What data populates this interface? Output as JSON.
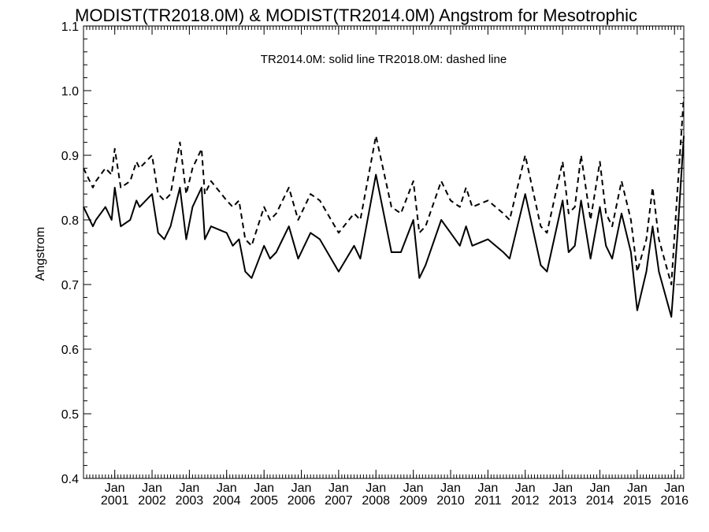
{
  "chart_data": {
    "type": "line",
    "title": "MODIST(TR2018.0M) & MODIST(TR2014.0M)  Angstrom for Mesotrophic",
    "annotation": "TR2014.0M: solid line   TR2018.0M: dashed line",
    "xlabel": "",
    "ylabel": "Angstrom",
    "xlim": [
      "2000-03-01",
      "2016-04-01"
    ],
    "ylim": [
      0.4,
      1.1
    ],
    "grid": false,
    "y_ticks": [
      0.4,
      0.5,
      0.6,
      0.7,
      0.8,
      0.9,
      1.0,
      1.1
    ],
    "y_tick_labels": [
      "0.4",
      "0.5",
      "0.6",
      "0.7",
      "0.8",
      "0.9",
      "1.0",
      "1.1"
    ],
    "x_ticks": [
      {
        "date": "2001-01-01",
        "line1": "Jan",
        "line2": "2001"
      },
      {
        "date": "2002-01-01",
        "line1": "Jan",
        "line2": "2002"
      },
      {
        "date": "2003-01-01",
        "line1": "Jan",
        "line2": "2003"
      },
      {
        "date": "2004-01-01",
        "line1": "Jan",
        "line2": "2004"
      },
      {
        "date": "2005-01-01",
        "line1": "Jan",
        "line2": "2005"
      },
      {
        "date": "2006-01-01",
        "line1": "Jan",
        "line2": "2006"
      },
      {
        "date": "2007-01-01",
        "line1": "Jan",
        "line2": "2007"
      },
      {
        "date": "2008-01-01",
        "line1": "Jan",
        "line2": "2008"
      },
      {
        "date": "2009-01-01",
        "line1": "Jan",
        "line2": "2009"
      },
      {
        "date": "2010-01-01",
        "line1": "Jan",
        "line2": "2010"
      },
      {
        "date": "2011-01-01",
        "line1": "Jan",
        "line2": "2011"
      },
      {
        "date": "2012-01-01",
        "line1": "Jan",
        "line2": "2012"
      },
      {
        "date": "2013-01-01",
        "line1": "Jan",
        "line2": "2013"
      },
      {
        "date": "2014-01-01",
        "line1": "Jan",
        "line2": "2014"
      },
      {
        "date": "2015-01-01",
        "line1": "Jan",
        "line2": "2015"
      },
      {
        "date": "2016-01-01",
        "line1": "Jan",
        "line2": "2016"
      }
    ],
    "series": [
      {
        "name": "TR2014.0M",
        "style": "solid",
        "color": "#000000",
        "x": [
          "2000-03-01",
          "2000-06-01",
          "2000-07-01",
          "2000-10-01",
          "2000-12-01",
          "2001-01-01",
          "2001-03-01",
          "2001-06-01",
          "2001-08-01",
          "2001-09-01",
          "2002-01-01",
          "2002-03-01",
          "2002-05-01",
          "2002-07-01",
          "2002-10-01",
          "2002-12-01",
          "2003-02-01",
          "2003-05-01",
          "2003-06-01",
          "2003-08-01",
          "2004-01-01",
          "2004-03-01",
          "2004-05-01",
          "2004-07-01",
          "2004-09-01",
          "2005-01-01",
          "2005-03-01",
          "2005-05-01",
          "2005-09-01",
          "2005-12-01",
          "2006-04-01",
          "2006-07-01",
          "2007-01-01",
          "2007-06-01",
          "2007-08-01",
          "2008-01-01",
          "2008-06-01",
          "2008-09-01",
          "2009-01-01",
          "2009-03-01",
          "2009-05-01",
          "2009-10-01",
          "2010-01-01",
          "2010-04-01",
          "2010-06-01",
          "2010-08-01",
          "2011-01-01",
          "2011-06-01",
          "2011-08-01",
          "2012-01-01",
          "2012-06-01",
          "2012-08-01",
          "2013-01-01",
          "2013-03-01",
          "2013-05-01",
          "2013-07-01",
          "2013-10-01",
          "2014-01-01",
          "2014-03-01",
          "2014-05-01",
          "2014-08-01",
          "2014-11-01",
          "2015-01-01",
          "2015-04-01",
          "2015-06-01",
          "2015-08-01",
          "2015-12-01",
          "2016-02-01",
          "2016-04-01"
        ],
        "values": [
          0.82,
          0.79,
          0.8,
          0.82,
          0.8,
          0.85,
          0.79,
          0.8,
          0.83,
          0.82,
          0.84,
          0.78,
          0.77,
          0.79,
          0.85,
          0.77,
          0.82,
          0.85,
          0.77,
          0.79,
          0.78,
          0.76,
          0.77,
          0.72,
          0.71,
          0.76,
          0.74,
          0.75,
          0.79,
          0.74,
          0.78,
          0.77,
          0.72,
          0.76,
          0.74,
          0.87,
          0.75,
          0.75,
          0.8,
          0.71,
          0.73,
          0.8,
          0.78,
          0.76,
          0.79,
          0.76,
          0.77,
          0.75,
          0.74,
          0.84,
          0.73,
          0.72,
          0.83,
          0.75,
          0.76,
          0.83,
          0.74,
          0.82,
          0.76,
          0.74,
          0.81,
          0.75,
          0.66,
          0.72,
          0.79,
          0.72,
          0.65,
          0.78,
          0.93
        ]
      },
      {
        "name": "TR2018.0M",
        "style": "dashed",
        "color": "#000000",
        "x": [
          "2000-03-01",
          "2000-06-01",
          "2000-07-01",
          "2000-10-01",
          "2000-12-01",
          "2001-01-01",
          "2001-03-01",
          "2001-06-01",
          "2001-08-01",
          "2001-09-01",
          "2002-01-01",
          "2002-03-01",
          "2002-05-01",
          "2002-07-01",
          "2002-10-01",
          "2002-12-01",
          "2003-02-01",
          "2003-05-01",
          "2003-06-01",
          "2003-08-01",
          "2004-01-01",
          "2004-03-01",
          "2004-05-01",
          "2004-07-01",
          "2004-09-01",
          "2005-01-01",
          "2005-03-01",
          "2005-05-01",
          "2005-09-01",
          "2005-12-01",
          "2006-04-01",
          "2006-07-01",
          "2007-01-01",
          "2007-06-01",
          "2007-08-01",
          "2008-01-01",
          "2008-06-01",
          "2008-09-01",
          "2009-01-01",
          "2009-03-01",
          "2009-05-01",
          "2009-10-01",
          "2010-01-01",
          "2010-04-01",
          "2010-06-01",
          "2010-08-01",
          "2011-01-01",
          "2011-06-01",
          "2011-08-01",
          "2012-01-01",
          "2012-06-01",
          "2012-08-01",
          "2013-01-01",
          "2013-03-01",
          "2013-05-01",
          "2013-07-01",
          "2013-10-01",
          "2014-01-01",
          "2014-03-01",
          "2014-05-01",
          "2014-08-01",
          "2014-11-01",
          "2015-01-01",
          "2015-04-01",
          "2015-06-01",
          "2015-08-01",
          "2015-12-01",
          "2016-02-01",
          "2016-04-01"
        ],
        "values": [
          0.88,
          0.85,
          0.86,
          0.88,
          0.87,
          0.91,
          0.85,
          0.86,
          0.89,
          0.88,
          0.9,
          0.84,
          0.83,
          0.84,
          0.92,
          0.84,
          0.88,
          0.91,
          0.84,
          0.86,
          0.83,
          0.82,
          0.83,
          0.77,
          0.76,
          0.82,
          0.8,
          0.81,
          0.85,
          0.8,
          0.84,
          0.83,
          0.78,
          0.81,
          0.8,
          0.93,
          0.82,
          0.81,
          0.86,
          0.78,
          0.79,
          0.86,
          0.83,
          0.82,
          0.85,
          0.82,
          0.83,
          0.81,
          0.8,
          0.9,
          0.79,
          0.78,
          0.89,
          0.81,
          0.82,
          0.9,
          0.8,
          0.89,
          0.81,
          0.79,
          0.86,
          0.8,
          0.72,
          0.77,
          0.85,
          0.77,
          0.7,
          0.85,
          0.99
        ]
      }
    ]
  }
}
